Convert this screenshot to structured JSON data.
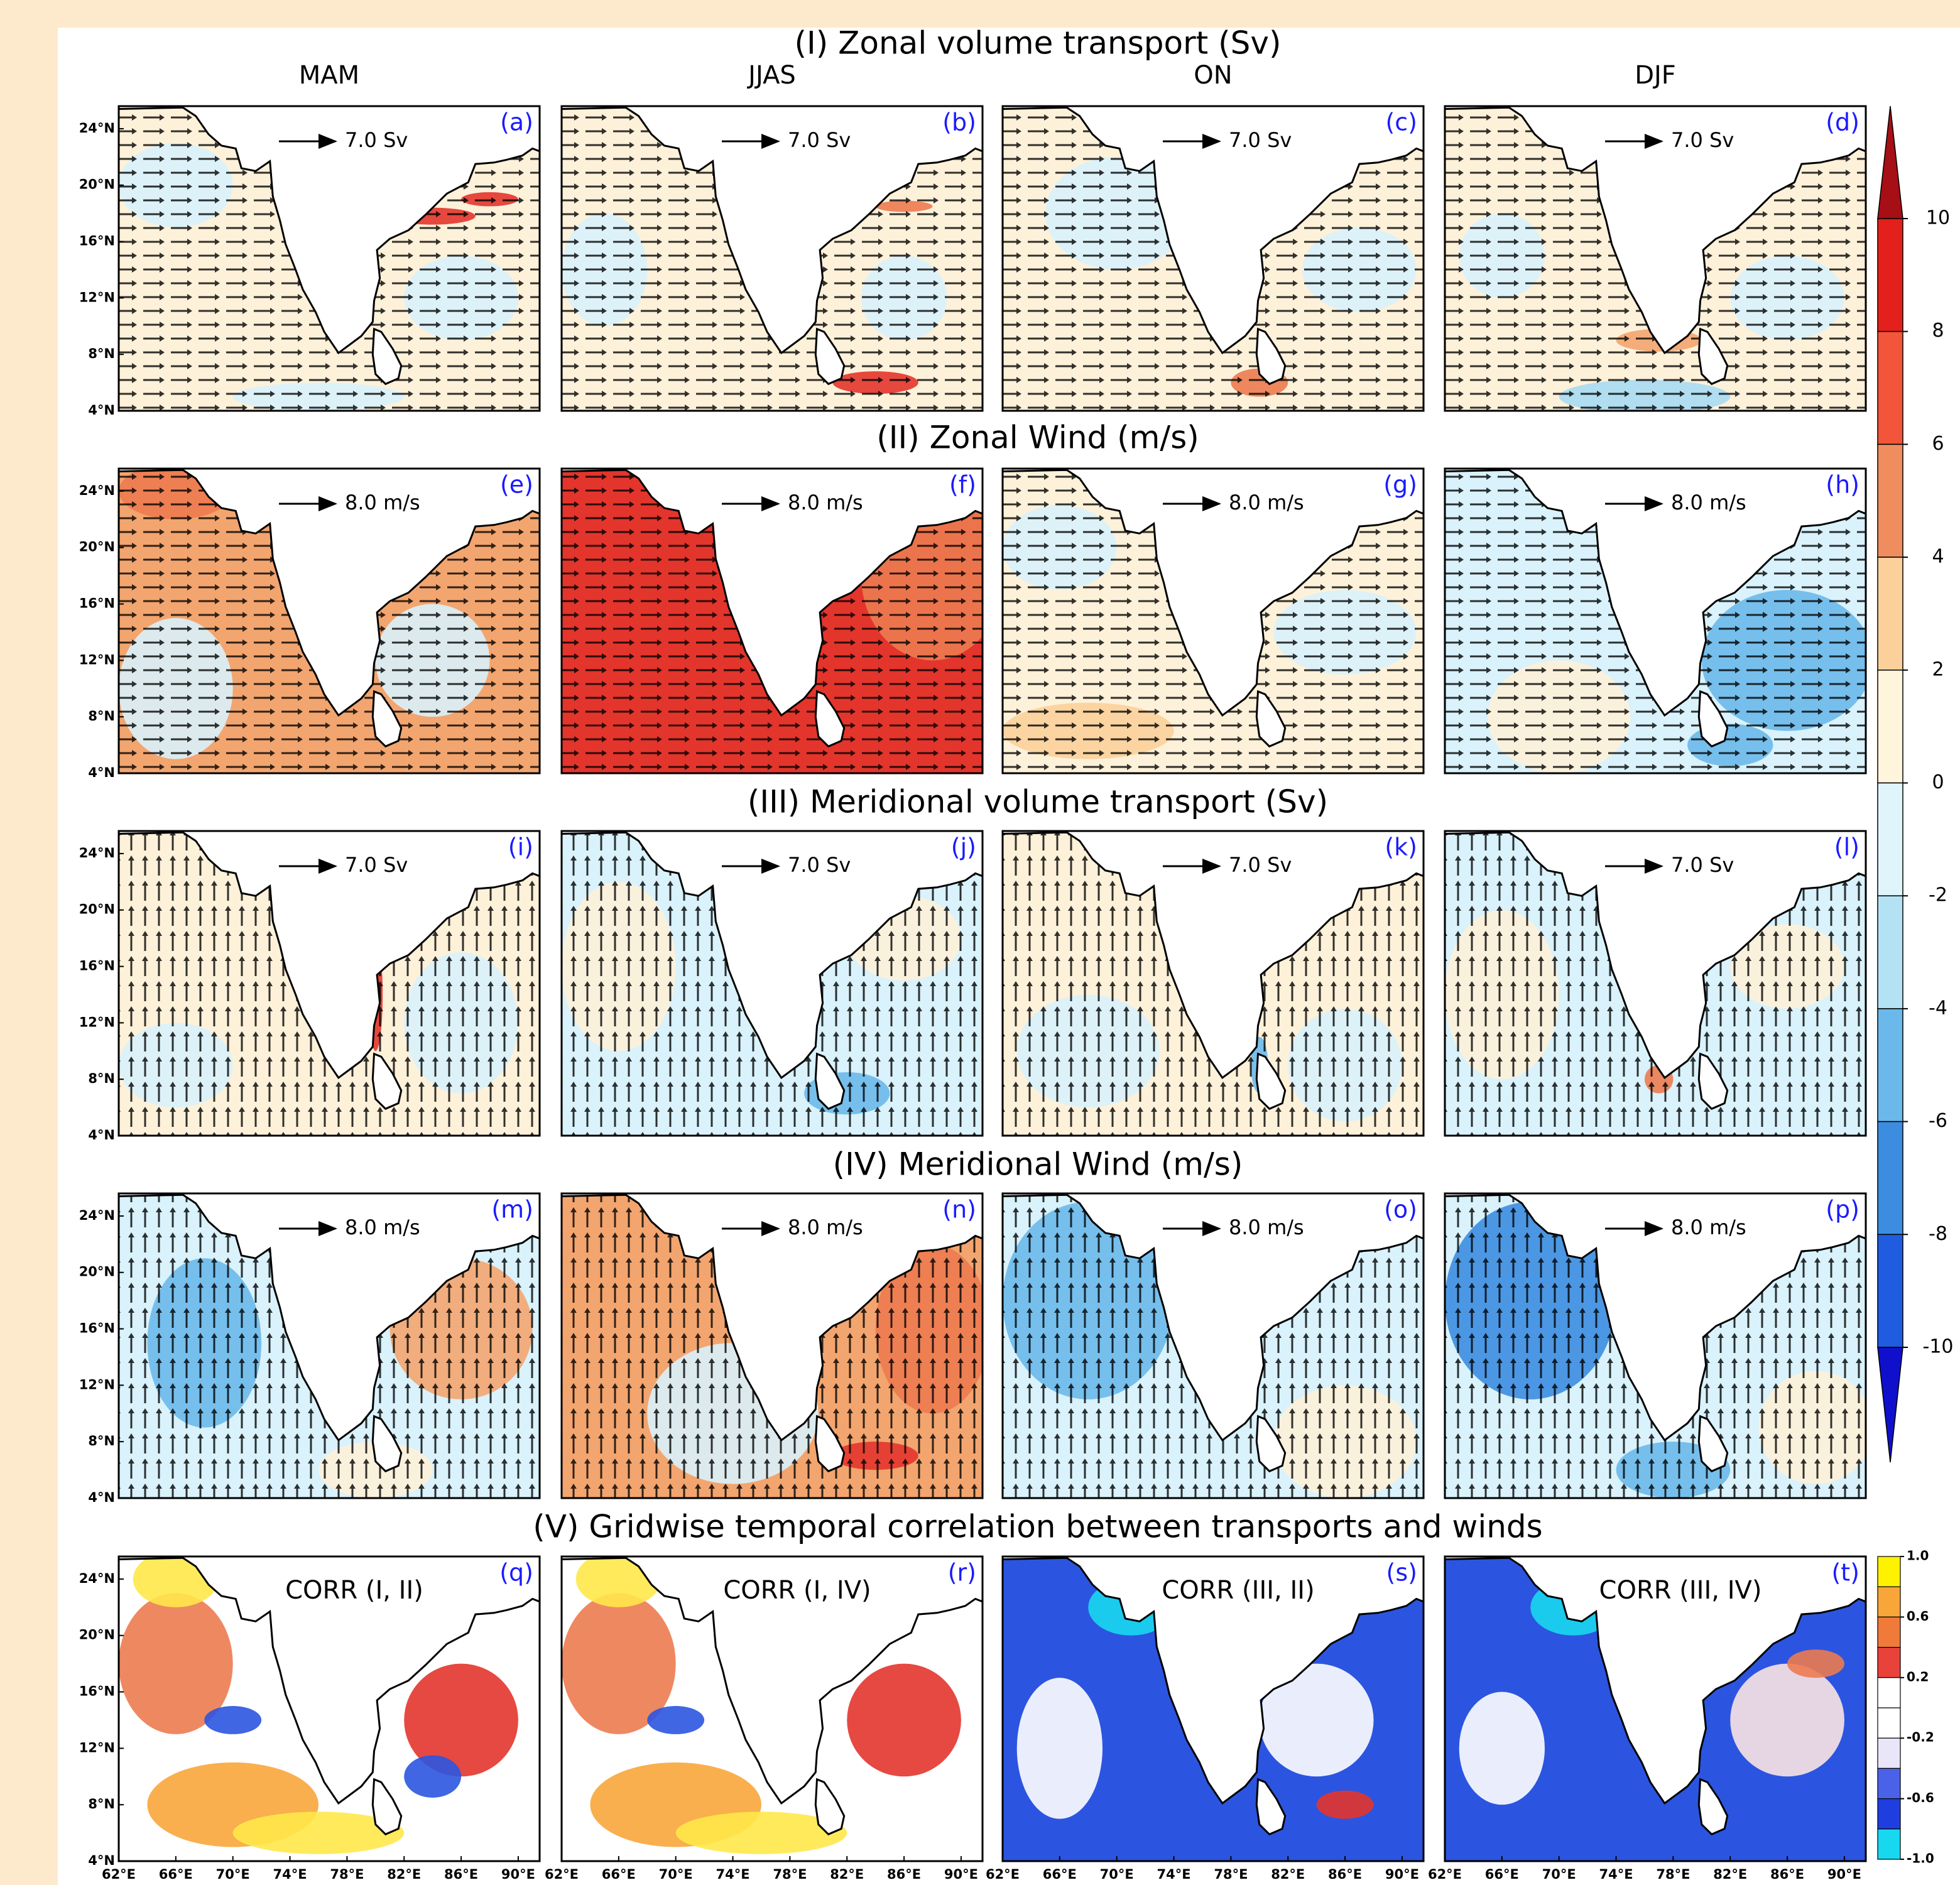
{
  "row_titles": [
    "(I) Zonal volume transport (Sv)",
    "(II) Zonal Wind (m/s)",
    "(III) Meridional volume transport (Sv)",
    "(IV) Meridional Wind (m/s)",
    "(V) Gridwise temporal correlation between transports and winds"
  ],
  "seasons": [
    "MAM",
    "JJAS",
    "ON",
    "DJF"
  ],
  "panel_letters": [
    [
      "(a)",
      "(b)",
      "(c)",
      "(d)"
    ],
    [
      "(e)",
      "(f)",
      "(g)",
      "(h)"
    ],
    [
      "(i)",
      "(j)",
      "(k)",
      "(l)"
    ],
    [
      "(m)",
      "(n)",
      "(o)",
      "(p)"
    ],
    [
      "(q)",
      "(r)",
      "(s)",
      "(t)"
    ]
  ],
  "reference_vectors": [
    "7.0 Sv",
    "8.0 m/s",
    "7.0 Sv",
    "8.0 m/s"
  ],
  "corr_labels": [
    "CORR (I, II)",
    "CORR (I, IV)",
    "CORR (III, II)",
    "CORR (III, IV)"
  ],
  "lon_lim": [
    62,
    91.5
  ],
  "lat_lim": [
    4,
    25.6
  ],
  "lat_ticks": [
    {
      "value": 24,
      "label": "24°N"
    },
    {
      "value": 20,
      "label": "20°N"
    },
    {
      "value": 16,
      "label": "16°N"
    },
    {
      "value": 12,
      "label": "12°N"
    },
    {
      "value": 8,
      "label": "8°N"
    },
    {
      "value": 4,
      "label": "4°N"
    }
  ],
  "lon_ticks": [
    {
      "value": 62,
      "label": "62°E"
    },
    {
      "value": 66,
      "label": "66°E"
    },
    {
      "value": 70,
      "label": "70°E"
    },
    {
      "value": 74,
      "label": "74°E"
    },
    {
      "value": 78,
      "label": "78°E"
    },
    {
      "value": 82,
      "label": "82°E"
    },
    {
      "value": 86,
      "label": "86°E"
    },
    {
      "value": 90,
      "label": "90°E"
    }
  ],
  "colorbar": {
    "lim": [
      -10,
      10
    ],
    "ticks": [
      10,
      8,
      6,
      4,
      2,
      0,
      -2,
      -4,
      -6,
      -8,
      -10
    ]
  },
  "corr_colorbar": {
    "lim": [
      -1,
      1
    ],
    "ticks": [
      {
        "value": 1,
        "label": "1.0"
      },
      {
        "value": 0.6,
        "label": "0.6"
      },
      {
        "value": 0.2,
        "label": "0.2"
      },
      {
        "value": -0.2,
        "label": "-0.2"
      },
      {
        "value": -0.6,
        "label": "-0.6"
      },
      {
        "value": -1,
        "label": "-1.0"
      }
    ]
  }
}
